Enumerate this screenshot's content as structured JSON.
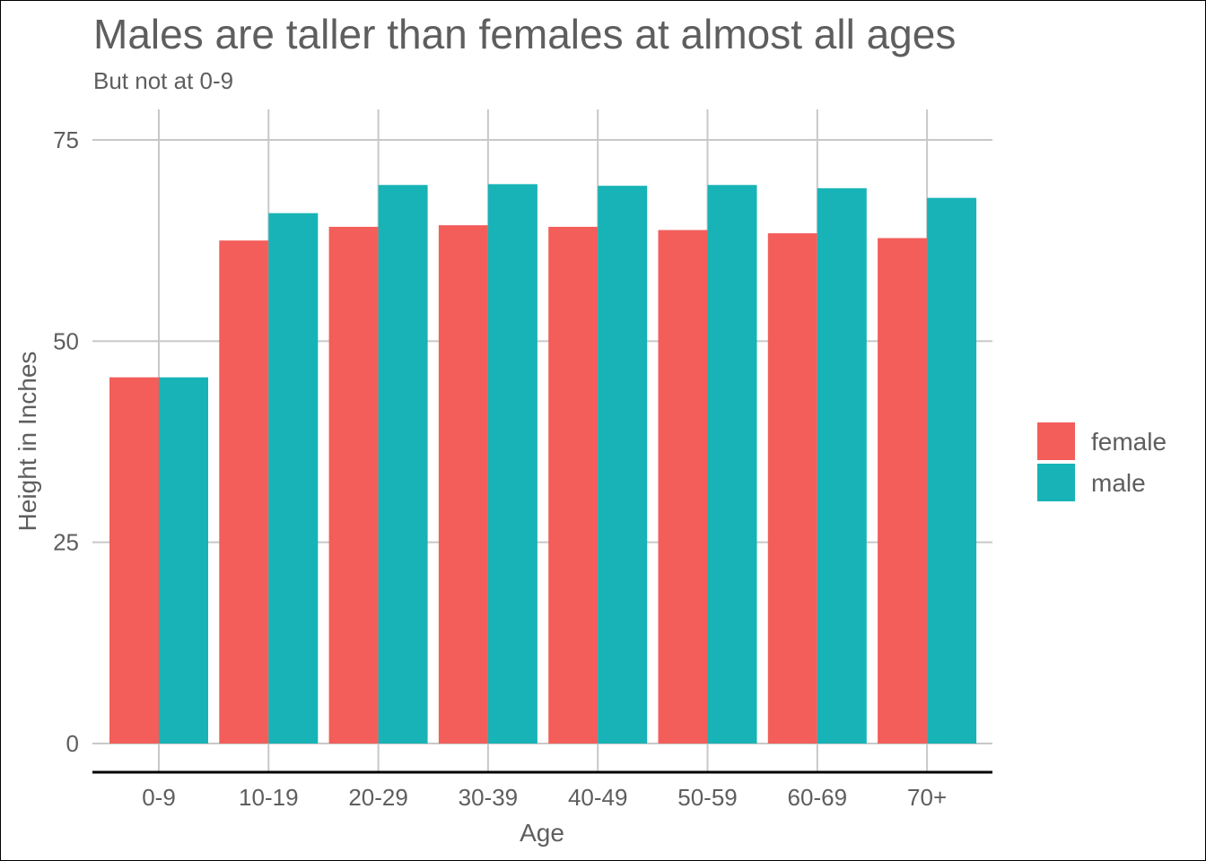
{
  "chart_data": {
    "type": "bar",
    "title": "Males are taller than females at almost all ages",
    "subtitle": "But not at 0-9",
    "xlabel": "Age",
    "ylabel": "Height in Inches",
    "categories": [
      "0-9",
      "10-19",
      "20-29",
      "30-39",
      "40-49",
      "50-59",
      "60-69",
      "70+"
    ],
    "series": [
      {
        "name": "female",
        "color": "#F35E5A",
        "values": [
          45.5,
          62.5,
          64.2,
          64.4,
          64.2,
          63.8,
          63.4,
          62.8
        ]
      },
      {
        "name": "male",
        "color": "#17B3B7",
        "values": [
          45.5,
          65.9,
          69.4,
          69.5,
          69.3,
          69.4,
          69.0,
          67.8
        ]
      }
    ],
    "ylim": [
      0,
      75
    ],
    "yticks": [
      "0",
      "25",
      "50",
      "75"
    ],
    "ytick_values": [
      0,
      25,
      50,
      75
    ],
    "grid": true,
    "legend_position": "right"
  }
}
